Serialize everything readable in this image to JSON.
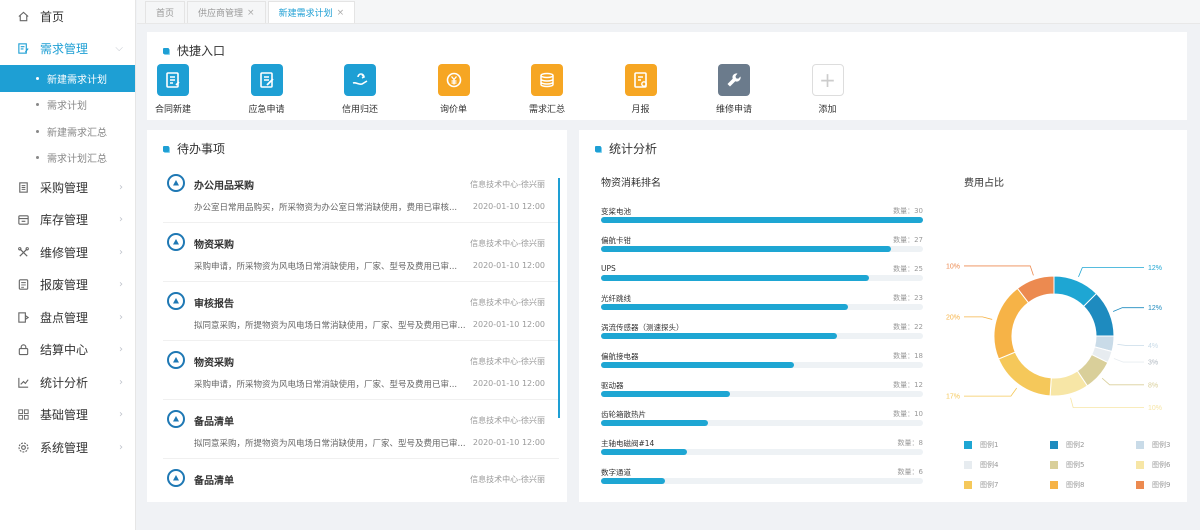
{
  "sidebar": {
    "items": [
      {
        "label": "首页",
        "icon": "home-icon",
        "has_arrow": false,
        "active": false
      },
      {
        "label": "需求管理",
        "icon": "edit-doc-icon",
        "has_arrow": true,
        "active": true
      },
      {
        "label": "采购管理",
        "icon": "document-icon",
        "has_arrow": true,
        "active": false
      },
      {
        "label": "库存管理",
        "icon": "warehouse-icon",
        "has_arrow": true,
        "active": false
      },
      {
        "label": "维修管理",
        "icon": "tools-icon",
        "has_arrow": true,
        "active": false
      },
      {
        "label": "报废管理",
        "icon": "scrap-icon",
        "has_arrow": true,
        "active": false
      },
      {
        "label": "盘点管理",
        "icon": "inventory-icon",
        "has_arrow": true,
        "active": false
      },
      {
        "label": "结算中心",
        "icon": "lock-icon",
        "has_arrow": true,
        "active": false
      },
      {
        "label": "统计分析",
        "icon": "chart-icon",
        "has_arrow": true,
        "active": false
      },
      {
        "label": "基础管理",
        "icon": "grid-icon",
        "has_arrow": true,
        "active": false
      },
      {
        "label": "系统管理",
        "icon": "gear-icon",
        "has_arrow": true,
        "active": false
      }
    ],
    "sub_items": [
      {
        "label": "新建需求计划",
        "active": true
      },
      {
        "label": "需求计划",
        "active": false
      },
      {
        "label": "新建需求汇总",
        "active": false
      },
      {
        "label": "需求计划汇总",
        "active": false
      }
    ]
  },
  "tabs": [
    {
      "label": "首页",
      "closable": false,
      "active": false
    },
    {
      "label": "供应商管理",
      "closable": true,
      "active": false
    },
    {
      "label": "新建需求计划",
      "closable": true,
      "active": true
    }
  ],
  "quick": {
    "title": "快捷入口",
    "items": [
      {
        "label": "合同新建",
        "icon": "contract-icon",
        "color": "#1e9fd4"
      },
      {
        "label": "应急申请",
        "icon": "form-edit-icon",
        "color": "#1e9fd4"
      },
      {
        "label": "信用归还",
        "icon": "hand-return-icon",
        "color": "#1e9fd4"
      },
      {
        "label": "询价单",
        "icon": "yen-inquiry-icon",
        "color": "#f6a623"
      },
      {
        "label": "需求汇总",
        "icon": "stack-icon",
        "color": "#f6a623"
      },
      {
        "label": "月报",
        "icon": "report-icon",
        "color": "#f6a623"
      },
      {
        "label": "维修申请",
        "icon": "wrench-icon",
        "color": "#6b7b8c"
      },
      {
        "label": "添加",
        "icon": "plus-icon",
        "color": "#ffffff"
      }
    ]
  },
  "todo": {
    "title": "待办事项",
    "items": [
      {
        "title": "办公用品采购",
        "meta": "信息技术中心-徐兴丽",
        "desc": "办公室日常用品购买，所采物资为办公室日常消缺使用，费用已审核...",
        "date": "2020-01-10 12:00"
      },
      {
        "title": "物资采购",
        "meta": "信息技术中心-徐兴丽",
        "desc": "采购申请，所采物资为风电场日常消缺使用，厂家、型号及费用已审...",
        "date": "2020-01-10 12:00"
      },
      {
        "title": "审核报告",
        "meta": "信息技术中心-徐兴丽",
        "desc": "拟同意采购，所提物资为风电场日常消缺使用，厂家、型号及费用已审...",
        "date": "2020-01-10 12:00"
      },
      {
        "title": "物资采购",
        "meta": "信息技术中心-徐兴丽",
        "desc": "采购申请，所采物资为风电场日常消缺使用，厂家、型号及费用已审...",
        "date": "2020-01-10 12:00"
      },
      {
        "title": "备品清单",
        "meta": "信息技术中心-徐兴丽",
        "desc": "拟同意采购，所提物资为风电场日常消缺使用，厂家、型号及费用已审...",
        "date": "2020-01-10 12:00"
      },
      {
        "title": "备品清单",
        "meta": "信息技术中心-徐兴丽",
        "desc": "",
        "date": ""
      }
    ]
  },
  "stats": {
    "title": "统计分析",
    "rank_title": "物资消耗排名",
    "pie_title": "费用占比",
    "value_prefix": "数量：",
    "bar_color": "#1ea6d3"
  },
  "chart_data": [
    {
      "type": "bar",
      "title": "物资消耗排名",
      "categories": [
        "变桨电池",
        "偏航卡钳",
        "UPS",
        "光纤跳线",
        "涡流传感器（测速探头）",
        "偏航接电器",
        "驱动器",
        "齿轮箱散热片",
        "主轴电磁阀#14",
        "数字通道"
      ],
      "values": [
        30,
        27,
        25,
        23,
        22,
        18,
        12,
        10,
        8,
        6
      ],
      "xlim": [
        0,
        30
      ]
    },
    {
      "type": "pie",
      "title": "费用占比",
      "labels": [
        "图例1",
        "图例2",
        "图例3",
        "图例4",
        "图例5",
        "图例6",
        "图例7",
        "图例8",
        "图例9"
      ],
      "values": [
        12,
        12,
        4,
        3,
        8,
        10,
        17,
        20,
        10
      ],
      "percent_labels": [
        "12%",
        "12%",
        "4%",
        "3%",
        "8%",
        "10%",
        "17%",
        "20%",
        "10%"
      ],
      "colors": [
        "#1ea6d3",
        "#1e8bbf",
        "#c9dbe8",
        "#e7ecf0",
        "#d9cf9a",
        "#f7e6a6",
        "#f5c85a",
        "#f6b347",
        "#ec8a50"
      ]
    }
  ]
}
